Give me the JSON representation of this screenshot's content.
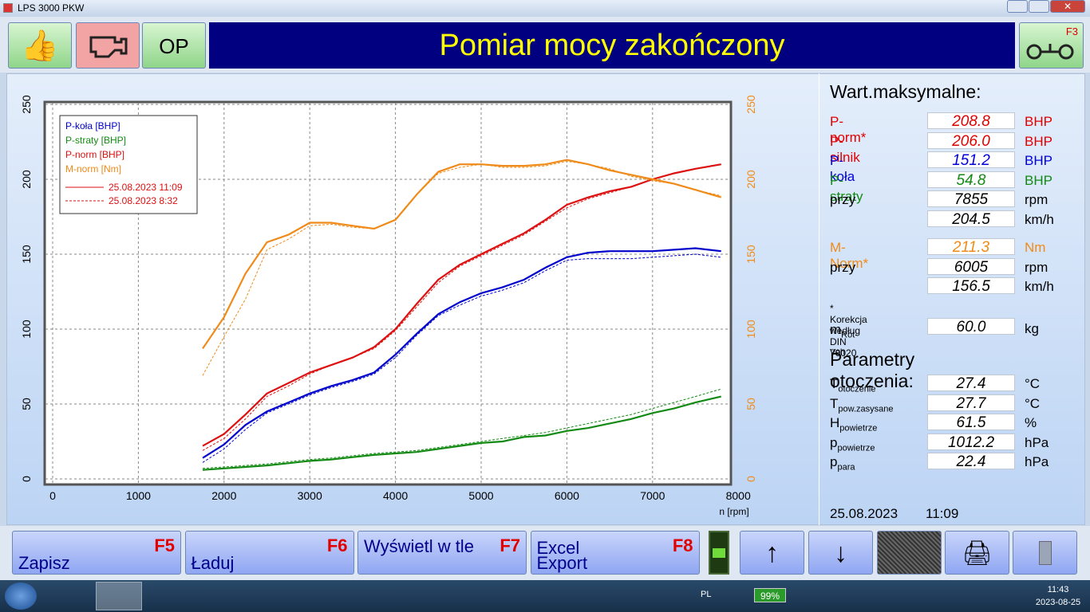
{
  "window_title": "LPS 3000 PKW",
  "toolbar": {
    "op": "OP",
    "status": "Pomiar mocy zakończony",
    "f3": "F3"
  },
  "chart_data": {
    "type": "line",
    "xlabel": "n [rpm]",
    "x": [
      1750,
      2000,
      2250,
      2500,
      2750,
      3000,
      3250,
      3500,
      3750,
      4000,
      4250,
      4500,
      4750,
      5000,
      5250,
      5500,
      5750,
      6000,
      6250,
      6500,
      6750,
      7000,
      7250,
      7500,
      7800
    ],
    "xlim": [
      0,
      8000
    ],
    "xticks": [
      0,
      1000,
      2000,
      3000,
      4000,
      5000,
      6000,
      7000,
      8000
    ],
    "ylim": [
      0,
      250
    ],
    "yticks": [
      0,
      50,
      100,
      150,
      200,
      250
    ],
    "y2lim": [
      0,
      250
    ],
    "y2ticks": [
      0,
      50,
      100,
      150,
      200,
      250
    ],
    "y2color": "#f08a18",
    "grid": true,
    "legend": "top-left",
    "runs": [
      {
        "label": "25.08.2023 11:09",
        "dash": "solid"
      },
      {
        "label": "25.08.2023 8:32",
        "dash": "dashed"
      }
    ],
    "series": [
      {
        "name": "P-koła [BHP]",
        "color": "#0000cc",
        "values": [
          14,
          23,
          36,
          45,
          51,
          57,
          62,
          66,
          71,
          83,
          97,
          110,
          118,
          124,
          128,
          133,
          141,
          148,
          151,
          152,
          152,
          152,
          153,
          154,
          152
        ],
        "values_b": [
          11,
          20,
          33,
          44,
          50,
          56,
          61,
          65,
          70,
          81,
          96,
          109,
          116,
          122,
          126,
          131,
          139,
          146,
          147,
          147,
          147,
          148,
          149,
          150,
          148
        ]
      },
      {
        "name": "P-straty [BHP]",
        "color": "#138a13",
        "values": [
          6,
          7,
          8,
          9,
          10.5,
          12,
          13,
          14.5,
          16,
          17,
          18,
          20,
          22,
          24,
          25,
          28,
          29,
          32,
          34,
          37,
          40,
          44,
          47,
          51,
          55
        ],
        "values_b": [
          7,
          8,
          9,
          10,
          11.5,
          13,
          14,
          15.5,
          17,
          18,
          19,
          21,
          23,
          25,
          27,
          29,
          31,
          34,
          37,
          40,
          43,
          47,
          51,
          55,
          60
        ]
      },
      {
        "name": "P-norm [BHP]",
        "color": "#dd1111",
        "values": [
          22,
          30,
          43,
          57,
          64,
          71,
          76,
          81,
          88,
          100,
          117,
          133,
          143,
          150,
          157,
          164,
          173,
          183,
          188,
          192,
          195,
          200,
          204,
          207,
          210
        ],
        "values_b": [
          19,
          27,
          40,
          55,
          62,
          70,
          76,
          81,
          87,
          99,
          115,
          131,
          142,
          149,
          156,
          163,
          172,
          181,
          187,
          191,
          195,
          200,
          204,
          207,
          210
        ]
      },
      {
        "name": "M-norm [Nm]",
        "color": "#f08a18",
        "axis": "y2",
        "values": [
          87,
          108,
          137,
          158,
          163,
          171,
          171,
          169,
          167,
          173,
          190,
          205,
          210,
          210,
          209,
          209,
          210,
          213,
          210,
          206,
          203,
          200,
          197,
          193,
          188
        ],
        "values_b": [
          69,
          95,
          120,
          153,
          160,
          169,
          170,
          168,
          167,
          173,
          190,
          204,
          208,
          210,
          208,
          208,
          209,
          212,
          210,
          207,
          202,
          199,
          197,
          193,
          189
        ]
      }
    ]
  },
  "max_panel": {
    "title": "Wart.maksymalne:",
    "rows": [
      {
        "label": "P-norm*",
        "value": "208.8",
        "unit": "BHP",
        "color": "#e00000"
      },
      {
        "label": "P-silnik",
        "value": "206.0",
        "unit": "BHP",
        "color": "#e00000"
      },
      {
        "label": "P-koła",
        "value": "151.2",
        "unit": "BHP",
        "color": "#0000dd"
      },
      {
        "label": "P-straty",
        "value": "54.8",
        "unit": "BHP",
        "color": "#138a13"
      },
      {
        "label": "przy",
        "value": "7855",
        "unit": "rpm",
        "color": "#000000"
      },
      {
        "value": "204.5",
        "unit": "km/h",
        "color": "#000000"
      },
      {
        "label": "M-Norm*",
        "value": "211.3",
        "unit": "Nm",
        "color": "#f08a18"
      },
      {
        "label": "przy",
        "value": "6005",
        "unit": "rpm",
        "color": "#000000"
      },
      {
        "value": "156.5",
        "unit": "km/h",
        "color": "#000000"
      }
    ],
    "note": "* Korekcja według DIN 70020",
    "mass": {
      "label": "m",
      "sub": "Rot-Veh",
      "value": "60.0",
      "unit": "kg"
    }
  },
  "env_panel": {
    "title": "Parametry otoczenia:",
    "rows": [
      {
        "label": "T",
        "sub": "otoczenie",
        "value": "27.4",
        "unit": "°C"
      },
      {
        "label": "T",
        "sub": "pow.zasysane",
        "value": "27.7",
        "unit": "°C"
      },
      {
        "label": "H",
        "sub": "powietrze",
        "value": "61.5",
        "unit": "%"
      },
      {
        "label": "p",
        "sub": "powietrze",
        "value": "1012.2",
        "unit": "hPa"
      },
      {
        "label": "p",
        "sub": "para",
        "value": "22.4",
        "unit": "hPa"
      }
    ],
    "date": "25.08.2023",
    "time": "11:09"
  },
  "buttons": [
    {
      "label": "Zapisz",
      "key": "F5"
    },
    {
      "label": "Ładuj",
      "key": "F6"
    },
    {
      "label": "Wyświetl w tle",
      "key": "F7"
    },
    {
      "label": "Excel Export",
      "key": "F8"
    }
  ],
  "taskbar": {
    "lang": "PL",
    "battery": "99%",
    "time": "11:43",
    "date": "2023-08-25"
  }
}
